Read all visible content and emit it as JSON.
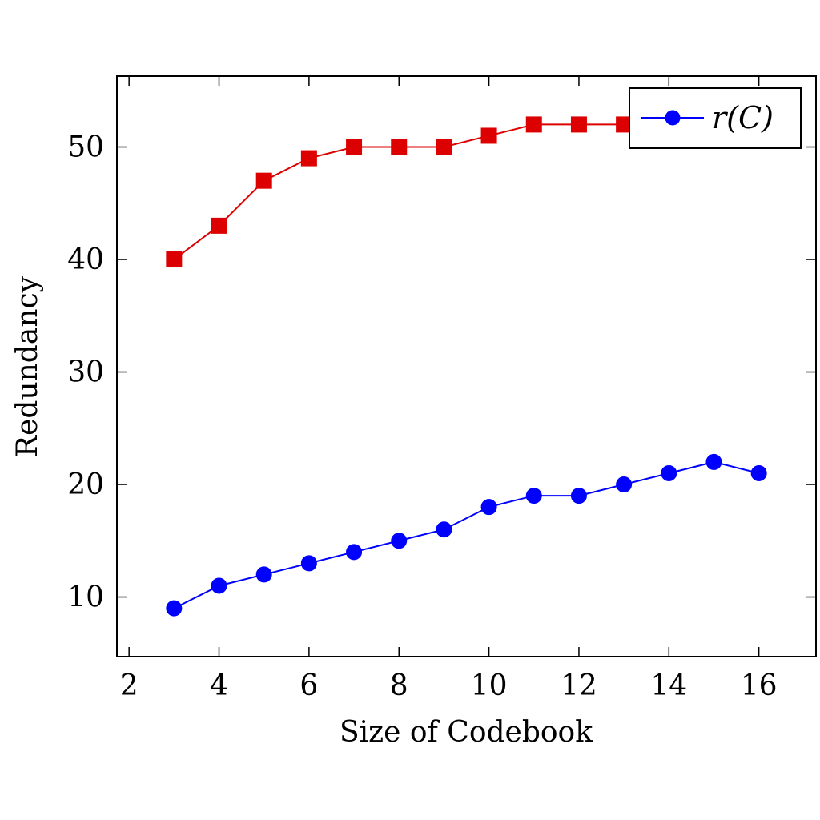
{
  "chart_data": {
    "type": "line",
    "xlabel": "Size of Codebook",
    "ylabel": "Redundancy",
    "xlim": [
      1.73,
      17.27
    ],
    "ylim": [
      4.7,
      56.3
    ],
    "xticks": [
      2,
      4,
      6,
      8,
      10,
      12,
      14,
      16
    ],
    "yticks": [
      10,
      20,
      30,
      40,
      50
    ],
    "grid": false,
    "legend_position": "top-right",
    "series": [
      {
        "name": "r(C)",
        "color": "#0000ff",
        "marker": "circle",
        "x": [
          3,
          4,
          5,
          6,
          7,
          8,
          9,
          10,
          11,
          12,
          13,
          14,
          15,
          16
        ],
        "values": [
          9,
          11,
          12,
          13,
          14,
          15,
          16,
          18,
          19,
          19,
          20,
          21,
          22,
          21
        ]
      },
      {
        "color": "#dd0000",
        "marker": "square",
        "x": [
          3,
          4,
          5,
          6,
          7,
          8,
          9,
          10,
          11,
          12,
          13
        ],
        "values": [
          40,
          43,
          47,
          49,
          50,
          50,
          50,
          51,
          52,
          52,
          52
        ]
      }
    ],
    "legend": [
      {
        "label": "r(C)",
        "color": "#0000ff",
        "marker": "circle"
      }
    ]
  }
}
